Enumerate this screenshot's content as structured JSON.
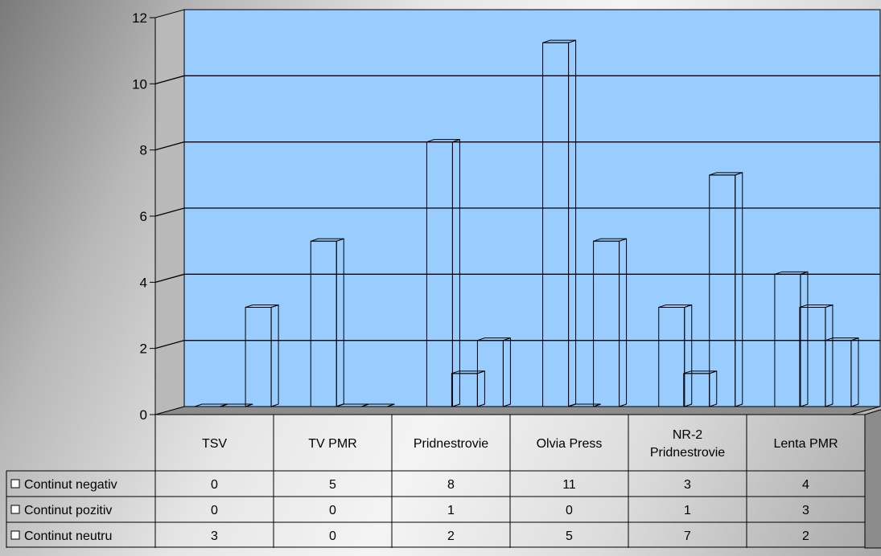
{
  "chart_data": {
    "type": "bar",
    "title": "",
    "xlabel": "",
    "ylabel": "",
    "ylim": [
      0,
      12
    ],
    "yticks": [
      "0",
      "2",
      "4",
      "6",
      "8",
      "10",
      "12"
    ],
    "grid": true,
    "categories": [
      "TSV",
      "TV PMR",
      "Pridnestrovie",
      "Olvia Press",
      "NR-2 Pridnestrovie",
      "Lenta PMR"
    ],
    "category_lines": [
      [
        "TSV"
      ],
      [
        "TV PMR"
      ],
      [
        "Pridnestrovie"
      ],
      [
        "Olvia Press"
      ],
      [
        "NR-2",
        "Pridnestrovie"
      ],
      [
        "Lenta PMR"
      ]
    ],
    "series": [
      {
        "name": "Continut negativ",
        "values": [
          0,
          5,
          8,
          11,
          3,
          4
        ]
      },
      {
        "name": "Continut pozitiv",
        "values": [
          0,
          0,
          1,
          0,
          1,
          3
        ]
      },
      {
        "name": "Continut neutru",
        "values": [
          3,
          0,
          2,
          5,
          7,
          2
        ]
      }
    ],
    "legend_placement": "data-table-left",
    "plot_background": "#99ccff",
    "bar_fill": "#ffffff",
    "bar_outline": "#000000",
    "legend_marker_symbol": "□"
  }
}
